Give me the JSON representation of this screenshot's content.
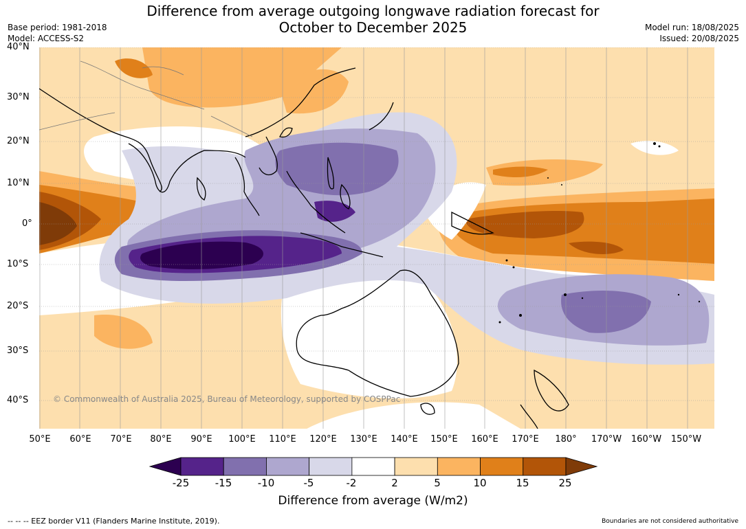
{
  "title_line1": "Difference from average outgoing longwave radiation forecast for",
  "title_line2": "October to December 2025",
  "base_period": "Base period: 1981-2018",
  "model": "Model: ACCESS-S2",
  "model_run": "Model run: 18/08/2025",
  "issued": "Issued: 20/08/2025",
  "copyright": "© Commonwealth of Australia 2025, Bureau of Meteorology, supported by COSPPac",
  "lat_labels": [
    "40°N",
    "30°N",
    "20°N",
    "10°N",
    "0°",
    "10°S",
    "20°S",
    "30°S",
    "40°S"
  ],
  "lon_labels": [
    "50°E",
    "60°E",
    "70°E",
    "80°E",
    "90°E",
    "100°E",
    "110°E",
    "120°E",
    "130°E",
    "140°E",
    "150°E",
    "160°E",
    "170°E",
    "180°",
    "170°W",
    "160°W",
    "150°W"
  ],
  "colorbar": {
    "ticks": [
      "-25",
      "-15",
      "-10",
      "-5",
      "-2",
      "2",
      "5",
      "10",
      "15",
      "25"
    ],
    "colors": [
      "#2c0050",
      "#55238a",
      "#8170ae",
      "#aea7cf",
      "#d8d8e9",
      "#ffffff",
      "#fddfae",
      "#fbb460",
      "#e0801a",
      "#b25508",
      "#7f3b08"
    ],
    "label": "Difference from average (W/m2)"
  },
  "eez_note": "--  --  -- EEZ border V11 (Flanders Marine Institute, 2019).",
  "boundaries_note": "Boundaries are not considered authoritative"
}
